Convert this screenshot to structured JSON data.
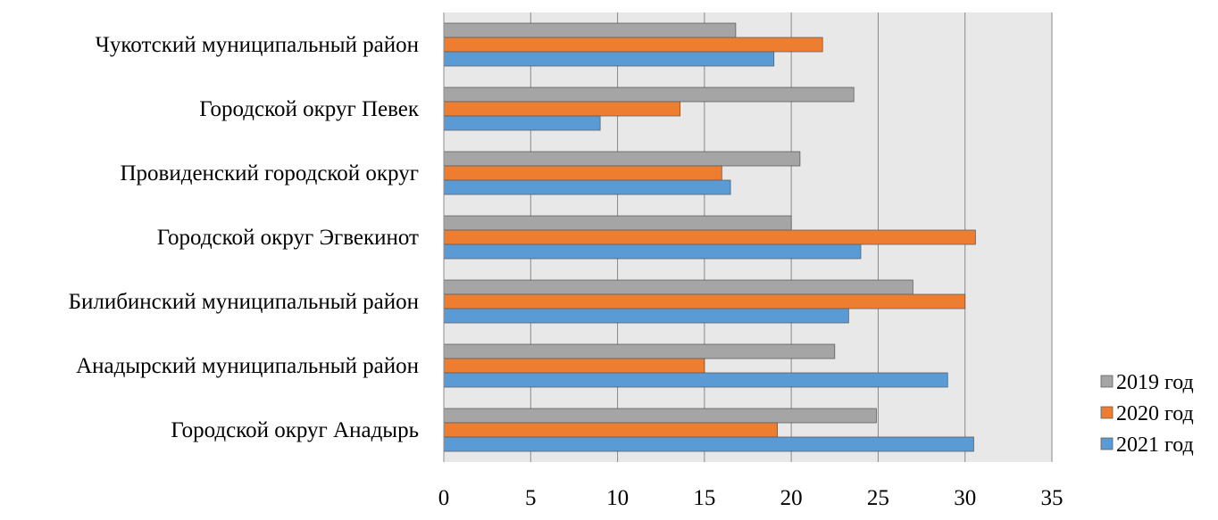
{
  "chart_data": {
    "type": "bar",
    "orientation": "horizontal",
    "categories": [
      "Чукотский муниципальный район",
      "Городской округ Певек",
      "Провиденский городской округ",
      "Городской округ Эгвекинот",
      "Билибинский муниципальный район",
      "Анадырский муниципальный район",
      "Городской округ Анадырь"
    ],
    "series": [
      {
        "name": "2019 год",
        "color": "#a5a5a5",
        "values": [
          16.8,
          23.6,
          20.5,
          20.0,
          27.0,
          22.5,
          24.9
        ]
      },
      {
        "name": "2020 год",
        "color": "#ed7d31",
        "values": [
          21.8,
          13.6,
          16.0,
          30.6,
          30.0,
          15.0,
          19.2
        ]
      },
      {
        "name": "2021 год",
        "color": "#5b9bd5",
        "values": [
          19.0,
          9.0,
          16.5,
          24.0,
          23.3,
          29.0,
          30.5
        ]
      }
    ],
    "xlim": [
      0,
      35
    ],
    "x_ticks": [
      "0",
      "5",
      "10",
      "15",
      "20",
      "25",
      "30",
      "35"
    ],
    "grid": true,
    "plot_background": "#e8e8e8",
    "legend_position": "right"
  }
}
